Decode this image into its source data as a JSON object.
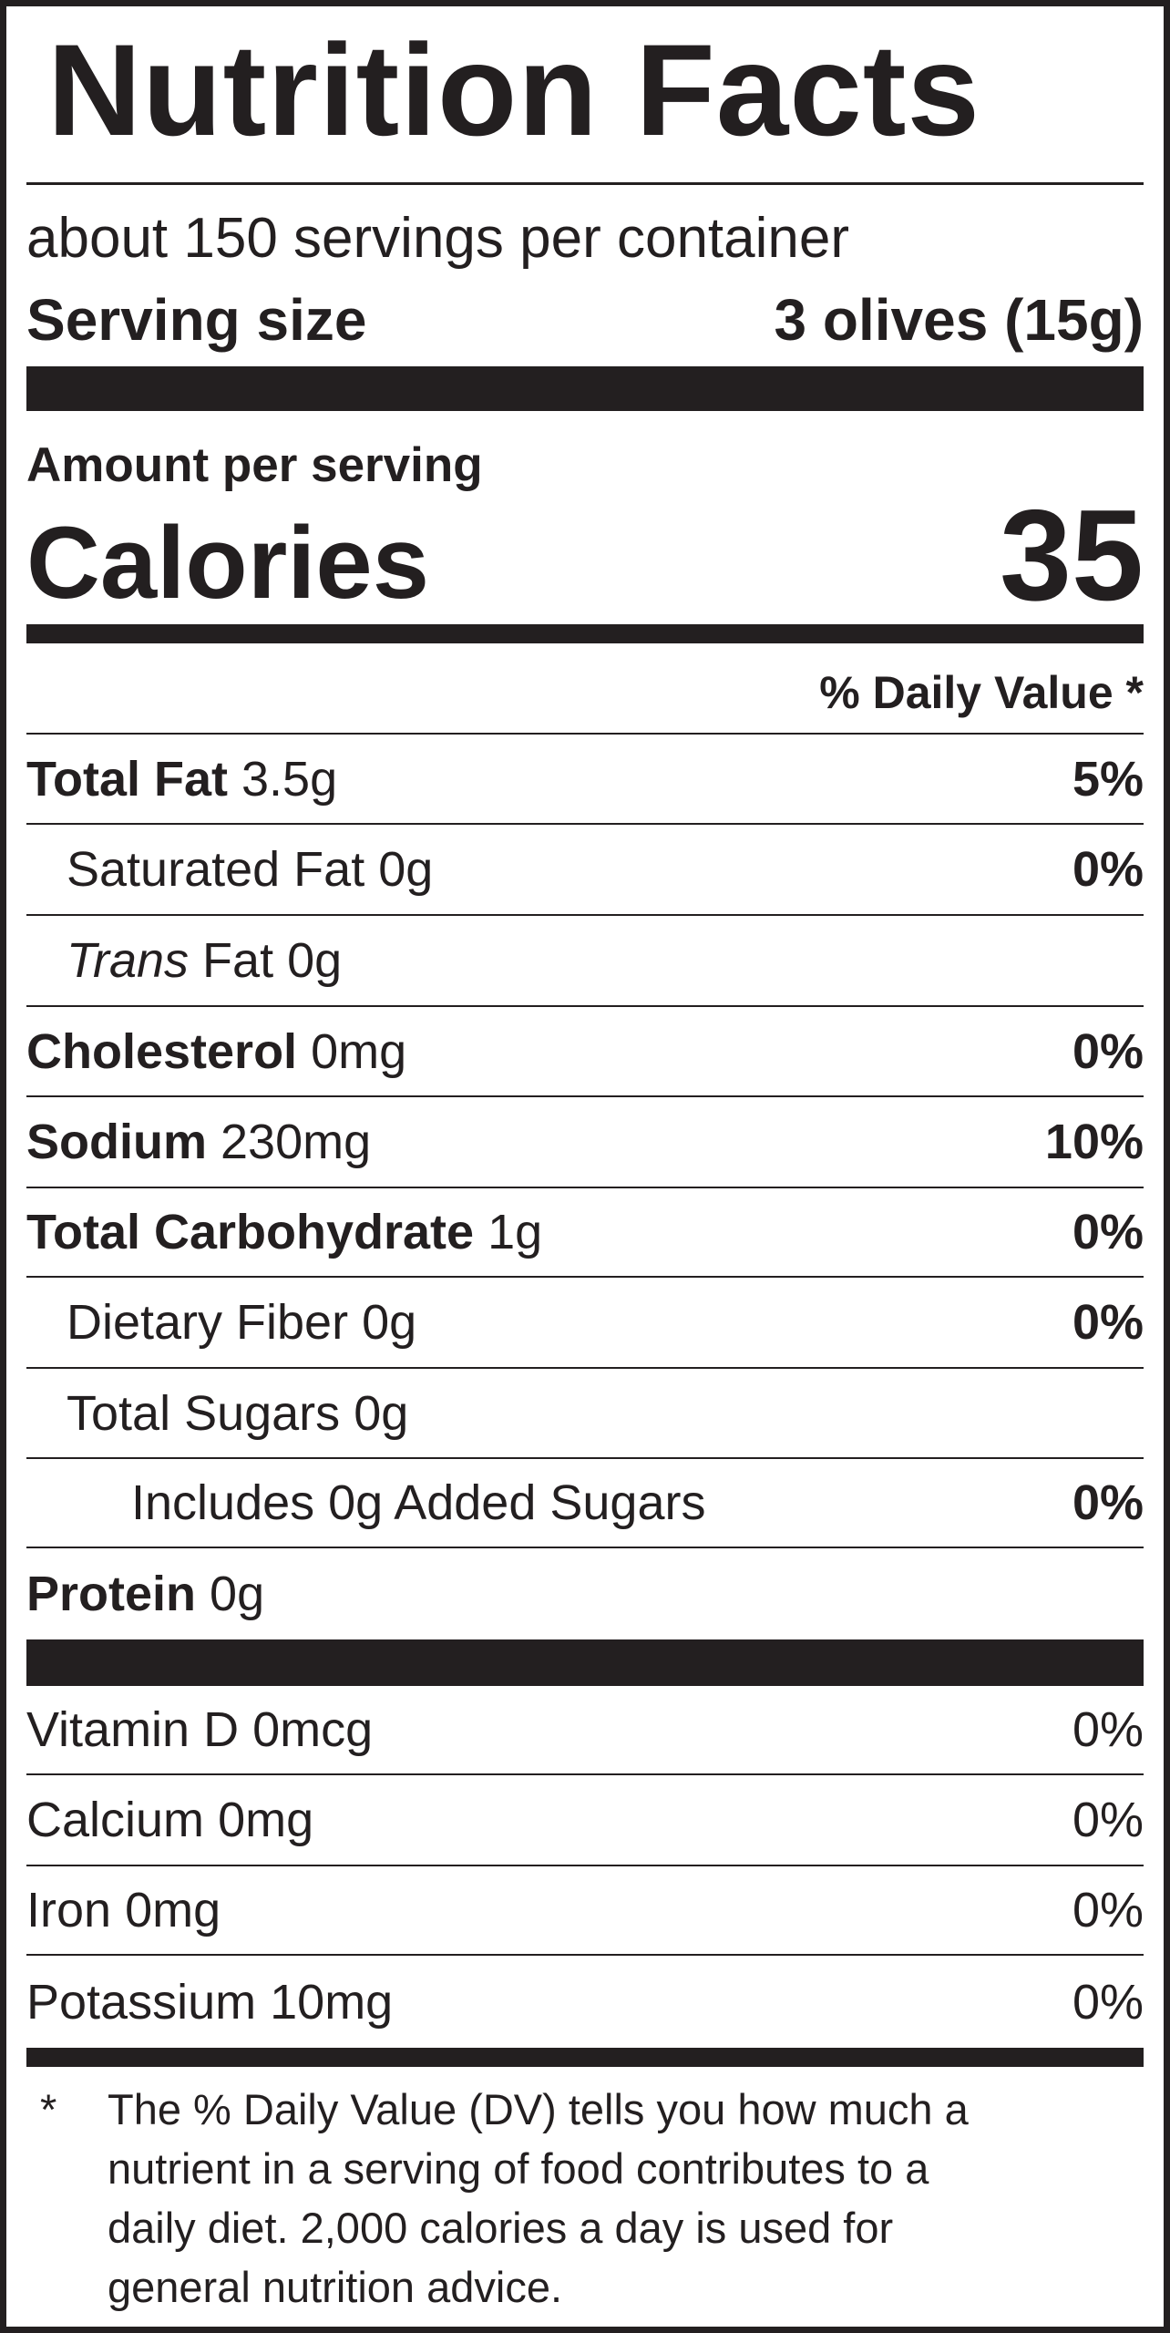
{
  "title": "Nutrition Facts",
  "servings_per_container": "about 150 servings per container",
  "serving_size": {
    "label": "Serving size",
    "value": "3 olives (15g)"
  },
  "amount_per_serving": "Amount per serving",
  "calories": {
    "label": "Calories",
    "value": "35"
  },
  "daily_value_header": "% Daily Value *",
  "nutrients": [
    {
      "name": "Total Fat",
      "amount": "3.5g",
      "dv": "5%",
      "bold": true,
      "indent": 0
    },
    {
      "name": "Saturated Fat",
      "amount": "0g",
      "dv": "0%",
      "bold": false,
      "indent": 1
    },
    {
      "name_italic": "Trans",
      "name": "Fat",
      "amount": "0g",
      "dv": "",
      "bold": false,
      "indent": 1
    },
    {
      "name": "Cholesterol",
      "amount": "0mg",
      "dv": "0%",
      "bold": true,
      "indent": 0
    },
    {
      "name": "Sodium",
      "amount": "230mg",
      "dv": "10%",
      "bold": true,
      "indent": 0
    },
    {
      "name": "Total Carbohydrate",
      "amount": "1g",
      "dv": "0%",
      "bold": true,
      "indent": 0
    },
    {
      "name": "Dietary Fiber",
      "amount": "0g",
      "dv": "0%",
      "bold": false,
      "indent": 1
    },
    {
      "name": "Total Sugars",
      "amount": "0g",
      "dv": "",
      "bold": false,
      "indent": 1
    },
    {
      "name": "Includes 0g Added Sugars",
      "amount": "",
      "dv": "0%",
      "bold": false,
      "indent": 2
    },
    {
      "name": "Protein",
      "amount": "0g",
      "dv": "",
      "bold": true,
      "indent": 0
    }
  ],
  "vitamins": [
    {
      "name": "Vitamin D",
      "amount": "0mcg",
      "dv": "0%"
    },
    {
      "name": "Calcium",
      "amount": "0mg",
      "dv": "0%"
    },
    {
      "name": "Iron",
      "amount": "0mg",
      "dv": "0%"
    },
    {
      "name": "Potassium",
      "amount": "10mg",
      "dv": "0%"
    }
  ],
  "footnote": {
    "asterisk": "*",
    "lines": [
      "The % Daily Value (DV) tells you how much a",
      "nutrient in a serving of food contributes to a",
      "daily diet. 2,000 calories a day is used for",
      "general nutrition advice."
    ]
  }
}
